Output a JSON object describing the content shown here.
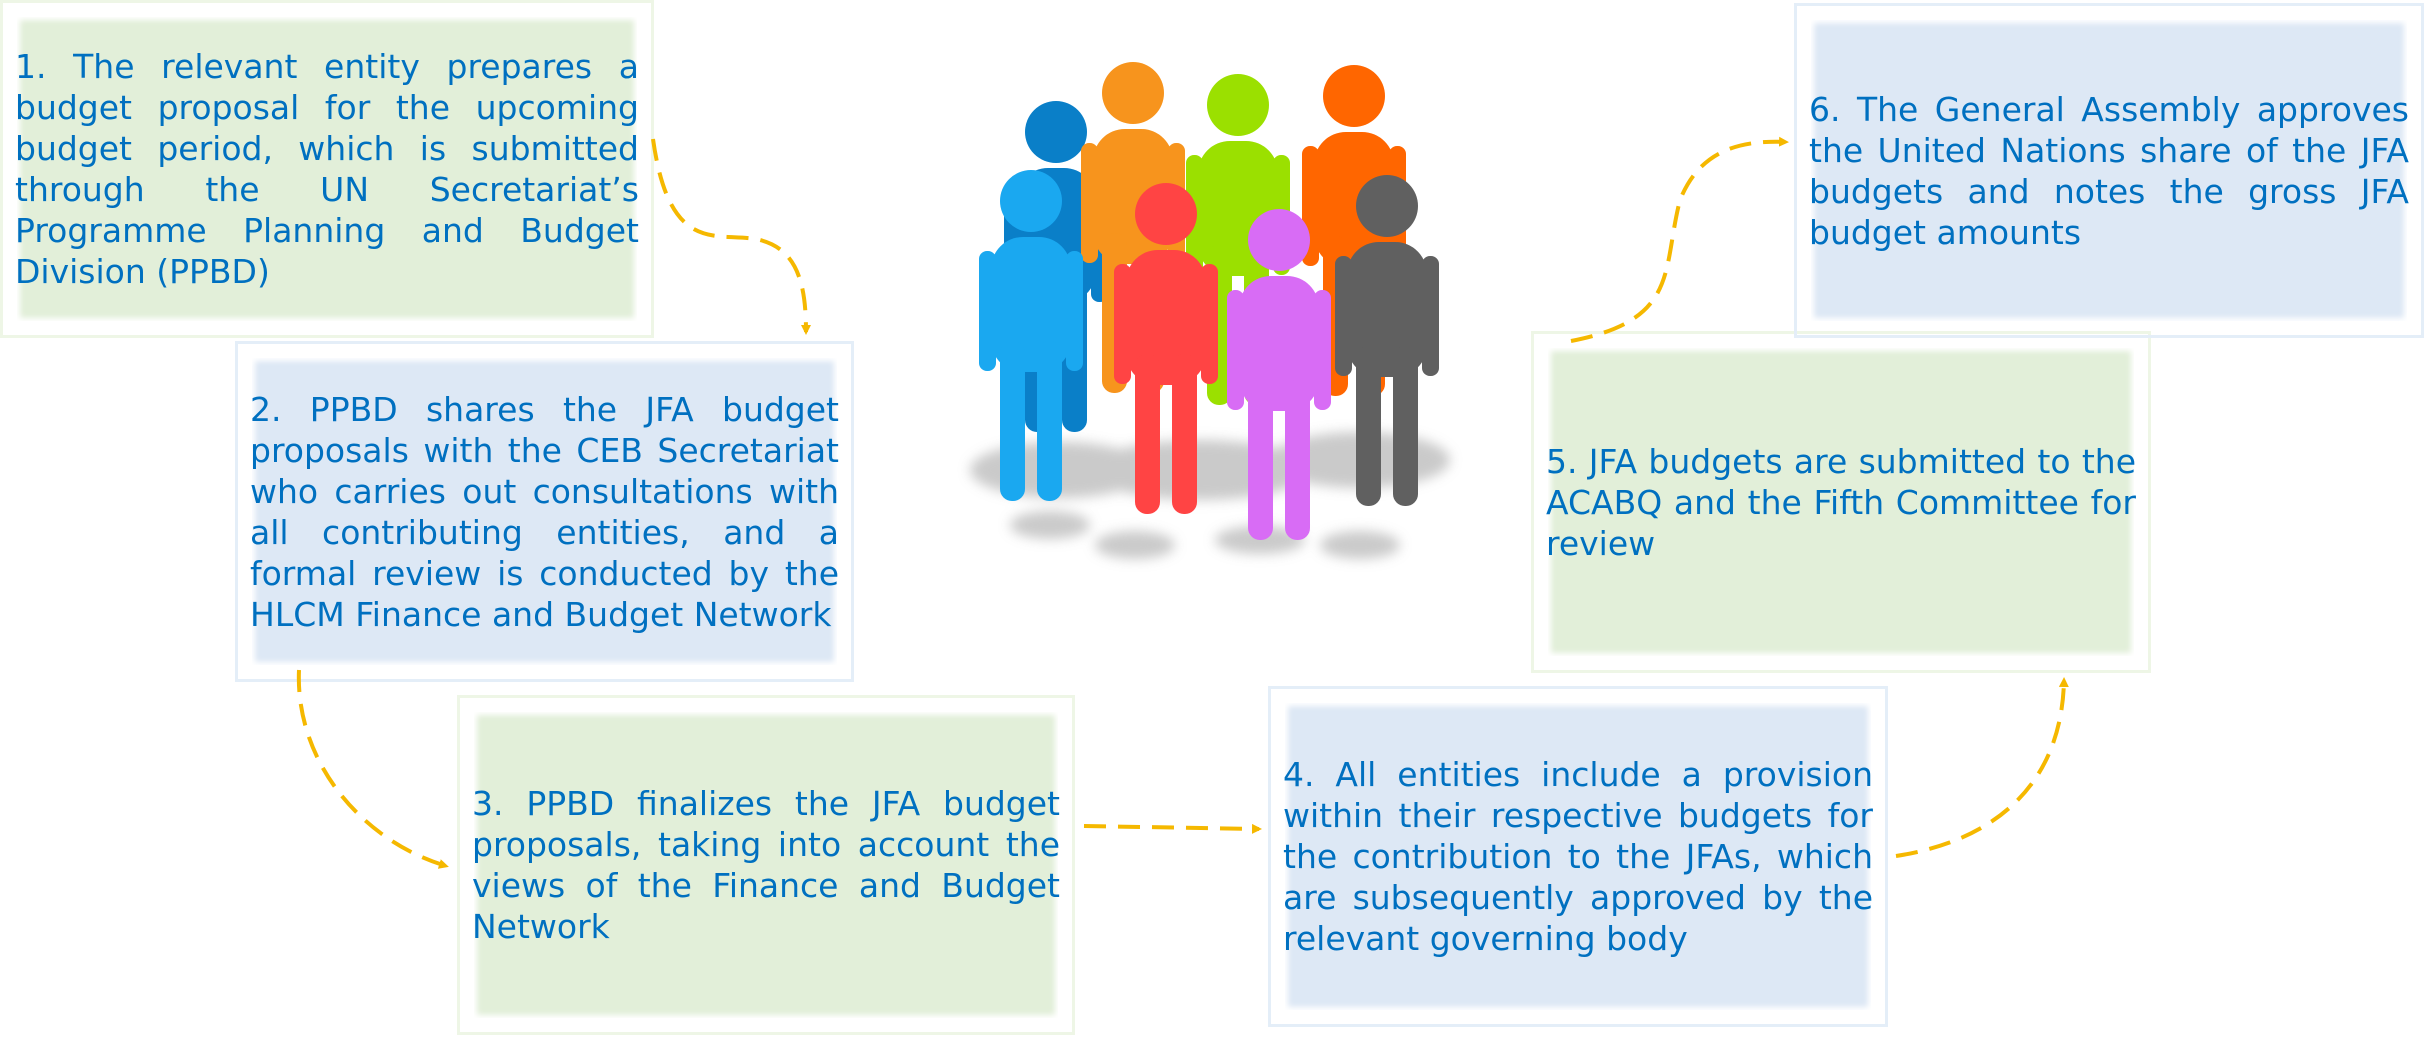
{
  "steps": [
    {
      "text": "1. The relevant entity prepares a budget proposal for the upcoming budget period, which is submitted through the UN Secretariat’s Programme Planning and Budget Division (PPBD)"
    },
    {
      "text": "2. PPBD shares the JFA budget proposals with the CEB Secretariat who carries out consultations with all contributing entities, and a formal review is conducted by the HLCM Finance and Budget Network"
    },
    {
      "text": "3. PPBD finalizes the JFA budget proposals, taking into account the views of the Finance and Budget Network"
    },
    {
      "text": "4. All entities include a provision within their respective budgets for the contribution to the JFAs, which are subsequently approved by the relevant governing body"
    },
    {
      "text": "5. JFA budgets are submitted to the ACABQ and the Fifth Committee for review"
    },
    {
      "text": "6. The General Assembly approves the United Nations share of the JFA budgets and notes the gross JFA budget amounts"
    }
  ]
}
